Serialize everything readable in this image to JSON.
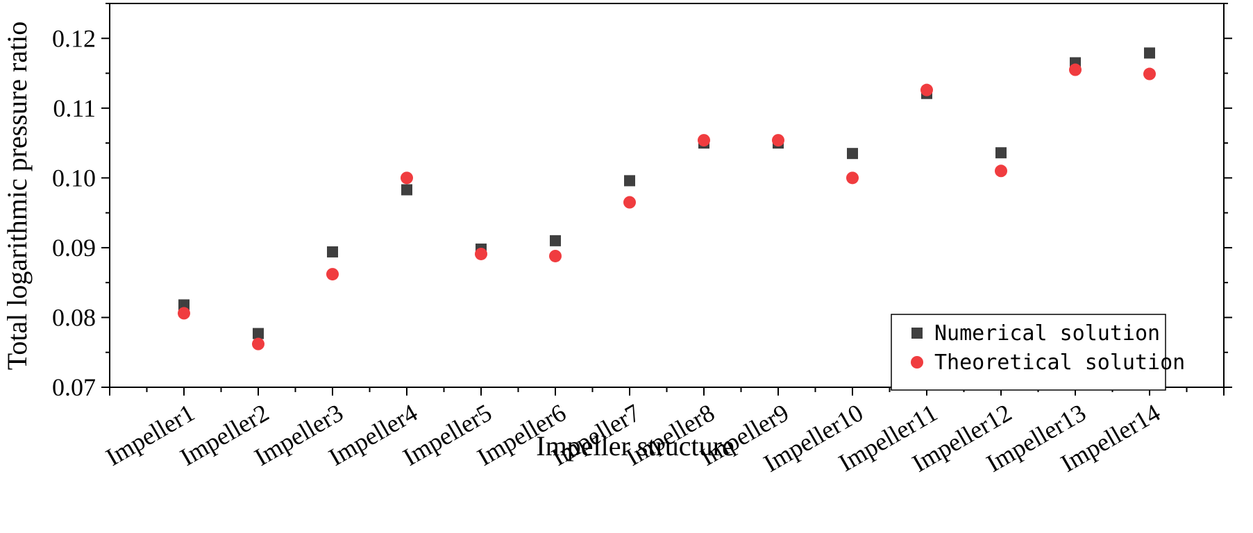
{
  "chart_data": {
    "type": "scatter",
    "xlabel": "Impeller structure",
    "ylabel": "Total logarithmic pressure ratio",
    "categories": [
      "Impeller1",
      "Impeller2",
      "Impeller3",
      "Impeller4",
      "Impeller5",
      "Impeller6",
      "Impeller7",
      "Impeller8",
      "Impeller9",
      "Impeller10",
      "Impeller11",
      "Impeller12",
      "Impeller13",
      "Impeller14"
    ],
    "ylim": [
      0.07,
      0.125
    ],
    "yticks": [
      0.07,
      0.08,
      0.09,
      0.1,
      0.11,
      0.12
    ],
    "ytick_labels": [
      "0.07",
      "0.08",
      "0.09",
      "0.10",
      "0.11",
      "0.12"
    ],
    "grid": false,
    "legend_position": "bottom-right",
    "series": [
      {
        "name": "Numerical solution",
        "marker": "square",
        "color": "#3f3f3f",
        "values": [
          0.0818,
          0.0777,
          0.0894,
          0.0983,
          0.0898,
          0.091,
          0.0996,
          0.105,
          0.105,
          0.1035,
          0.1121,
          0.1036,
          0.1165,
          0.1179
        ]
      },
      {
        "name": "Theoretical solution",
        "marker": "circle",
        "color": "#f03c3f",
        "values": [
          0.0806,
          0.0762,
          0.0862,
          0.1,
          0.0891,
          0.0888,
          0.0965,
          0.1054,
          0.1054,
          0.1,
          0.1126,
          0.101,
          0.1155,
          0.1149
        ]
      }
    ]
  }
}
